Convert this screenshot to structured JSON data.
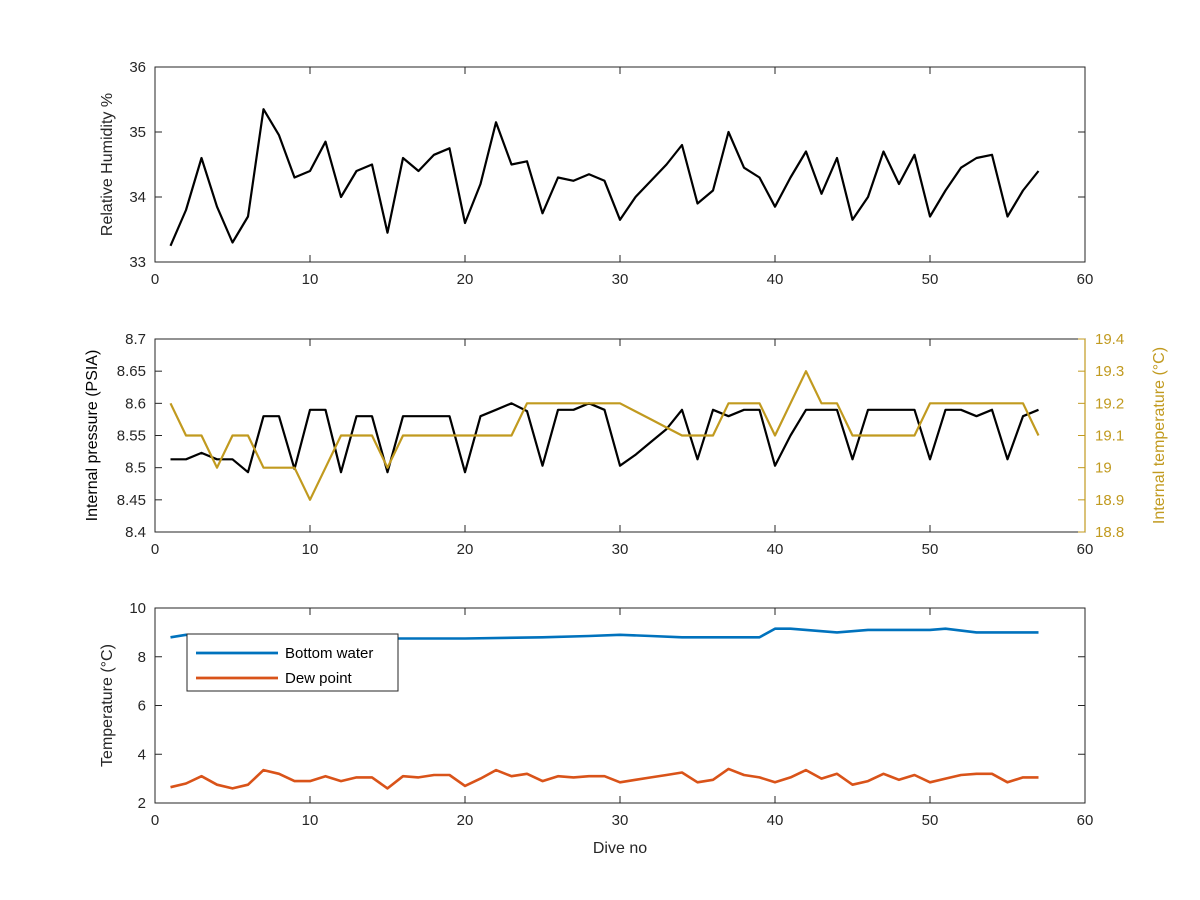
{
  "chart_data": [
    {
      "type": "line",
      "xlabel": "",
      "ylabel": "Relative Humidity %",
      "xlim": [
        0,
        60
      ],
      "ylim": [
        33,
        36
      ],
      "xticks": [
        0,
        10,
        20,
        30,
        40,
        50,
        60
      ],
      "yticks": [
        33,
        34,
        35,
        36
      ],
      "grid": false,
      "series": [
        {
          "color": "#000000",
          "x": [
            1,
            2,
            3,
            4,
            5,
            6,
            7,
            8,
            9,
            10,
            11,
            12,
            13,
            14,
            15,
            16,
            17,
            18,
            19,
            20,
            21,
            22,
            23,
            24,
            25,
            26,
            27,
            28,
            29,
            30,
            31,
            32,
            33,
            34,
            35,
            36,
            37,
            38,
            39,
            40,
            41,
            42,
            43,
            44,
            45,
            46,
            47,
            48,
            49,
            50,
            51,
            52,
            53,
            54,
            55,
            56,
            57
          ],
          "values": [
            33.25,
            33.8,
            34.6,
            33.85,
            33.3,
            33.7,
            35.35,
            34.95,
            34.3,
            34.4,
            34.85,
            34.0,
            34.4,
            34.5,
            33.45,
            34.6,
            34.4,
            34.65,
            34.75,
            33.6,
            34.2,
            35.15,
            34.5,
            34.55,
            33.75,
            34.3,
            34.25,
            34.35,
            34.25,
            33.65,
            34.0,
            34.25,
            34.5,
            34.8,
            33.9,
            34.1,
            35.0,
            34.45,
            34.3,
            33.85,
            34.3,
            34.7,
            34.05,
            34.6,
            33.65,
            34.0,
            34.7,
            34.2,
            34.65,
            33.7,
            34.1,
            34.45,
            34.6,
            34.65,
            33.7,
            34.1,
            34.4
          ]
        }
      ]
    },
    {
      "type": "line",
      "xlabel": "",
      "ylabel": "Internal pressure (PSIA)",
      "y2label": "Internal temperature (°C)",
      "xlim": [
        0,
        60
      ],
      "ylim": [
        8.4,
        8.7
      ],
      "y2lim": [
        18.8,
        19.4
      ],
      "xticks": [
        0,
        10,
        20,
        30,
        40,
        50,
        60
      ],
      "yticks": [
        8.4,
        8.45,
        8.5,
        8.55,
        8.6,
        8.65,
        8.7
      ],
      "y2ticks": [
        18.8,
        18.9,
        19,
        19.1,
        19.2,
        19.3,
        19.4
      ],
      "grid": false,
      "series": [
        {
          "axis": "left",
          "color": "#000000",
          "x": [
            1,
            2,
            3,
            4,
            5,
            6,
            7,
            8,
            9,
            10,
            11,
            12,
            13,
            14,
            15,
            16,
            17,
            18,
            19,
            20,
            21,
            22,
            23,
            24,
            25,
            26,
            27,
            28,
            29,
            30,
            31,
            32,
            33,
            34,
            35,
            36,
            37,
            38,
            39,
            40,
            41,
            42,
            43,
            44,
            45,
            46,
            47,
            48,
            49,
            50,
            51,
            52,
            53,
            54,
            55,
            56,
            57
          ],
          "values": [
            8.513,
            8.513,
            8.523,
            8.513,
            8.513,
            8.493,
            8.58,
            8.58,
            8.498,
            8.59,
            8.59,
            8.493,
            8.58,
            8.58,
            8.493,
            8.58,
            8.58,
            8.58,
            8.58,
            8.493,
            8.58,
            8.59,
            8.6,
            8.588,
            8.503,
            8.59,
            8.59,
            8.6,
            8.59,
            8.503,
            8.52,
            8.54,
            8.56,
            8.59,
            8.513,
            8.59,
            8.58,
            8.59,
            8.59,
            8.503,
            8.55,
            8.59,
            8.59,
            8.59,
            8.513,
            8.59,
            8.59,
            8.59,
            8.59,
            8.513,
            8.59,
            8.59,
            8.58,
            8.59,
            8.513,
            8.58,
            8.59
          ]
        },
        {
          "axis": "right",
          "color": "#C19A1F",
          "x": [
            1,
            2,
            3,
            4,
            5,
            6,
            7,
            8,
            9,
            10,
            11,
            12,
            13,
            14,
            15,
            16,
            17,
            18,
            19,
            20,
            21,
            22,
            23,
            24,
            25,
            26,
            27,
            28,
            29,
            30,
            31,
            32,
            33,
            34,
            35,
            36,
            37,
            38,
            39,
            40,
            41,
            42,
            43,
            44,
            45,
            46,
            47,
            48,
            49,
            50,
            51,
            52,
            53,
            54,
            55,
            56,
            57
          ],
          "values": [
            19.2,
            19.1,
            19.1,
            19.0,
            19.1,
            19.1,
            19.0,
            19.0,
            19.0,
            18.9,
            19.0,
            19.1,
            19.1,
            19.1,
            19.0,
            19.1,
            19.1,
            19.1,
            19.1,
            19.1,
            19.1,
            19.1,
            19.1,
            19.2,
            19.2,
            19.2,
            19.2,
            19.2,
            19.2,
            19.2,
            19.175,
            19.15,
            19.125,
            19.1,
            19.1,
            19.1,
            19.2,
            19.2,
            19.2,
            19.1,
            19.2,
            19.3,
            19.2,
            19.2,
            19.1,
            19.1,
            19.1,
            19.1,
            19.1,
            19.2,
            19.2,
            19.2,
            19.2,
            19.2,
            19.2,
            19.2,
            19.1
          ]
        }
      ]
    },
    {
      "type": "line",
      "xlabel": "Dive no",
      "ylabel": "Temperature (°C)",
      "xlim": [
        0,
        60
      ],
      "ylim": [
        2,
        10
      ],
      "xticks": [
        0,
        10,
        20,
        30,
        40,
        50,
        60
      ],
      "yticks": [
        2,
        4,
        6,
        8,
        10
      ],
      "grid": false,
      "legend": "top-left",
      "series": [
        {
          "name": "Bottom water",
          "color": "#0072BD",
          "x": [
            1,
            2,
            3,
            5,
            10,
            15,
            20,
            25,
            28,
            30,
            32,
            34,
            36,
            38,
            39,
            40,
            41,
            42,
            44,
            46,
            48,
            50,
            51,
            53,
            55,
            57
          ],
          "values": [
            8.8,
            8.9,
            8.8,
            8.75,
            8.75,
            8.75,
            8.75,
            8.8,
            8.85,
            8.9,
            8.85,
            8.8,
            8.8,
            8.8,
            8.8,
            9.15,
            9.15,
            9.1,
            9.0,
            9.1,
            9.1,
            9.1,
            9.15,
            9.0,
            9.0,
            9.0
          ]
        },
        {
          "name": "Dew point",
          "color": "#D95319",
          "x": [
            1,
            2,
            3,
            4,
            5,
            6,
            7,
            8,
            9,
            10,
            11,
            12,
            13,
            14,
            15,
            16,
            17,
            18,
            19,
            20,
            21,
            22,
            23,
            24,
            25,
            26,
            27,
            28,
            29,
            30,
            31,
            32,
            33,
            34,
            35,
            36,
            37,
            38,
            39,
            40,
            41,
            42,
            43,
            44,
            45,
            46,
            47,
            48,
            49,
            50,
            51,
            52,
            53,
            54,
            55,
            56,
            57
          ],
          "values": [
            2.65,
            2.8,
            3.1,
            2.75,
            2.6,
            2.75,
            3.35,
            3.2,
            2.9,
            2.9,
            3.1,
            2.9,
            3.05,
            3.05,
            2.6,
            3.1,
            3.05,
            3.15,
            3.15,
            2.7,
            3.0,
            3.35,
            3.1,
            3.2,
            2.9,
            3.1,
            3.05,
            3.1,
            3.1,
            2.85,
            2.95,
            3.05,
            3.15,
            3.25,
            2.85,
            2.95,
            3.4,
            3.15,
            3.05,
            2.85,
            3.05,
            3.35,
            3.0,
            3.2,
            2.75,
            2.9,
            3.2,
            2.95,
            3.15,
            2.85,
            3.0,
            3.15,
            3.2,
            3.2,
            2.85,
            3.05,
            3.05
          ]
        }
      ]
    }
  ]
}
